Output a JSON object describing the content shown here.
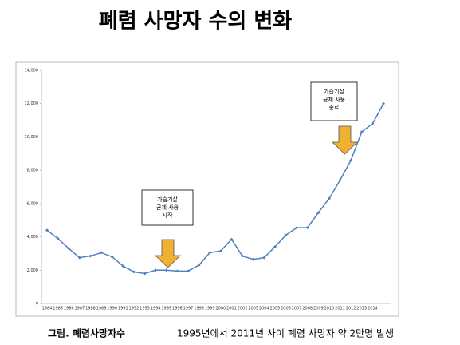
{
  "chart_data": {
    "type": "line",
    "title": "폐렴 사망자 수의 변화",
    "caption": [
      "그림. 폐렴사망자수",
      "1995년에서 2011년 사이 폐렴 사망자 약 2만명 발생"
    ],
    "categories": [
      "1984",
      "1985",
      "1986",
      "1987",
      "1988",
      "1989",
      "1990",
      "1991",
      "1992",
      "1993",
      "1994",
      "1995",
      "1996",
      "1997",
      "1998",
      "1999",
      "2000",
      "2001",
      "2002",
      "2003",
      "2004",
      "2005",
      "2006",
      "2007",
      "2008",
      "2009",
      "2010",
      "2011",
      "2012",
      "2013",
      "2014",
      null
    ],
    "series": [
      {
        "color": "#4f81bd",
        "values": [
          4400,
          3900,
          3300,
          2750,
          2850,
          3050,
          2800,
          2250,
          1900,
          1800,
          2000,
          2000,
          1950,
          1950,
          2300,
          3050,
          3150,
          3850,
          2850,
          2650,
          2750,
          3400,
          4100,
          4550,
          4550,
          5450,
          6300,
          7400,
          8600,
          10300,
          10800,
          12000
        ]
      }
    ],
    "ylim": [
      0,
      14000
    ],
    "yticks": [
      0,
      {
        "value": 2000,
        "label": "2,000"
      },
      {
        "value": 4000,
        "label": "4,000"
      },
      {
        "value": 6000,
        "label": "6,000"
      },
      {
        "value": 8000,
        "label": "8,000"
      },
      {
        "value": 10000,
        "label": "10,000"
      },
      {
        "value": 12000,
        "label": "12,000"
      },
      {
        "value": 14000,
        "label": "14,000"
      }
    ],
    "annotations": [
      {
        "text": [
          "가습기살",
          "균제 사용",
          "시작"
        ]
      },
      {
        "text": [
          "가습기살",
          "균제 사용",
          "종료"
        ]
      }
    ]
  }
}
